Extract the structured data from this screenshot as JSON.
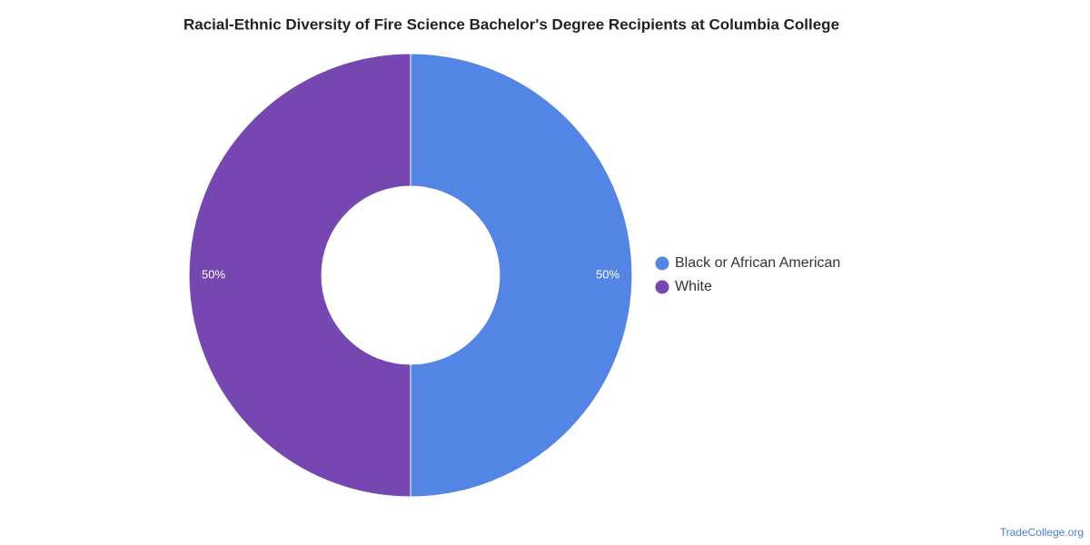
{
  "chart_data": {
    "type": "donut",
    "title": "Racial-Ethnic Diversity of Fire Science Bachelor's Degree Recipients at Columbia College",
    "categories": [
      "Black or African American",
      "White"
    ],
    "values": [
      50,
      50
    ],
    "value_labels": [
      "50%",
      "50%"
    ],
    "colors": [
      "#5386e4",
      "#7647b0"
    ],
    "legend": "right",
    "source": "TradeCollege.org"
  }
}
